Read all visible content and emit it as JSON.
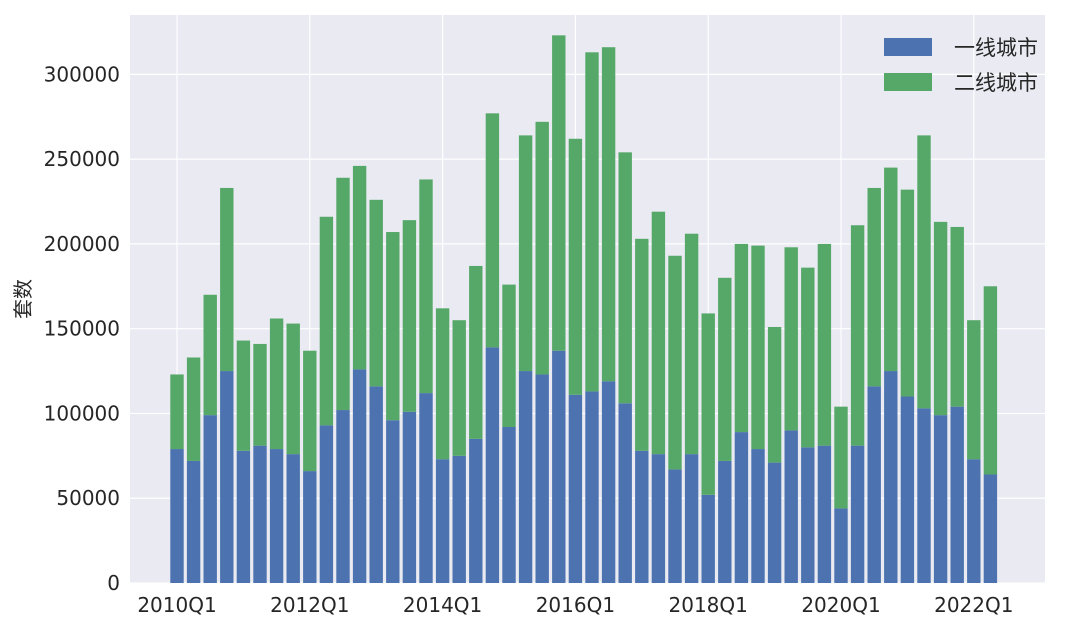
{
  "chart_data": {
    "type": "bar",
    "stacked": true,
    "ylabel": "套数",
    "xlabel": "",
    "ylim": [
      0,
      335000
    ],
    "y_ticks": [
      0,
      50000,
      100000,
      150000,
      200000,
      250000,
      300000
    ],
    "y_tick_labels": [
      "0",
      "50000",
      "100000",
      "150000",
      "200000",
      "250000",
      "300000"
    ],
    "x_tick_labels": [
      "2010Q1",
      "2012Q1",
      "2014Q1",
      "2016Q1",
      "2018Q1",
      "2020Q1",
      "2022Q1"
    ],
    "x_tick_category_index": [
      0,
      8,
      16,
      24,
      32,
      40,
      48
    ],
    "legend_position": "top-right",
    "grid": true,
    "colors": {
      "background": "#eaeaf2",
      "grid": "#ffffff",
      "series1": "#4c72b0",
      "series2": "#55a868"
    },
    "categories": [
      "2010Q1",
      "2010Q2",
      "2010Q3",
      "2010Q4",
      "2011Q1",
      "2011Q2",
      "2011Q3",
      "2011Q4",
      "2012Q1",
      "2012Q2",
      "2012Q3",
      "2012Q4",
      "2013Q1",
      "2013Q2",
      "2013Q3",
      "2013Q4",
      "2014Q1",
      "2014Q2",
      "2014Q3",
      "2014Q4",
      "2015Q1",
      "2015Q2",
      "2015Q3",
      "2015Q4",
      "2016Q1",
      "2016Q2",
      "2016Q3",
      "2016Q4",
      "2017Q1",
      "2017Q2",
      "2017Q3",
      "2017Q4",
      "2018Q1",
      "2018Q2",
      "2018Q3",
      "2018Q4",
      "2019Q1",
      "2019Q2",
      "2019Q3",
      "2019Q4",
      "2020Q1",
      "2020Q2",
      "2020Q3",
      "2020Q4",
      "2021Q1",
      "2021Q2",
      "2021Q3",
      "2021Q4",
      "2022Q1",
      "2022Q2"
    ],
    "series": [
      {
        "name": "一线城市",
        "values": [
          79000,
          72000,
          99000,
          125000,
          78000,
          81000,
          79000,
          76000,
          66000,
          93000,
          102000,
          126000,
          116000,
          96000,
          101000,
          112000,
          73000,
          75000,
          85000,
          139000,
          92000,
          125000,
          123000,
          137000,
          111000,
          113000,
          119000,
          106000,
          78000,
          76000,
          67000,
          76000,
          52000,
          72000,
          89000,
          79000,
          71000,
          90000,
          80000,
          81000,
          44000,
          81000,
          116000,
          125000,
          110000,
          103000,
          99000,
          104000,
          73000,
          64000
        ]
      },
      {
        "name": "二线城市",
        "values": [
          44000,
          61000,
          71000,
          108000,
          65000,
          60000,
          77000,
          77000,
          71000,
          123000,
          137000,
          120000,
          110000,
          111000,
          113000,
          126000,
          89000,
          80000,
          102000,
          138000,
          84000,
          139000,
          149000,
          186000,
          151000,
          200000,
          197000,
          148000,
          125000,
          143000,
          126000,
          130000,
          107000,
          108000,
          111000,
          120000,
          80000,
          108000,
          106000,
          119000,
          60000,
          130000,
          117000,
          120000,
          122000,
          161000,
          114000,
          106000,
          82000,
          111000
        ]
      }
    ],
    "total_override": [
      null,
      null,
      null,
      null,
      null,
      null,
      null,
      null,
      null,
      null,
      null,
      null,
      null,
      null,
      null,
      null,
      null,
      null,
      null,
      null,
      null,
      null,
      null,
      null,
      null,
      null,
      null,
      null,
      null,
      null,
      null,
      null,
      null,
      null,
      null,
      null,
      null,
      null,
      null,
      null,
      null,
      null,
      null,
      null,
      null,
      null,
      null,
      null,
      null,
      null
    ]
  }
}
